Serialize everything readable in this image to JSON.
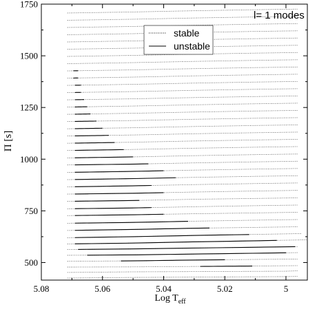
{
  "chart_data": {
    "type": "line",
    "title": "",
    "xlabel": "Log T",
    "xlabel_sub": "eff",
    "ylabel": "Π [s]",
    "xlim": [
      5.08,
      4.993
    ],
    "ylim": [
      415,
      1750
    ],
    "x_ticks": [
      "5.08",
      "5.06",
      "5.04",
      "5.02",
      "5"
    ],
    "y_ticks": [
      "500",
      "750",
      "1000",
      "1250",
      "1500",
      "1750"
    ],
    "annotation": "l= 1 modes",
    "legend": {
      "position": "top-center",
      "entries": [
        {
          "label": "stable",
          "style": "dotted"
        },
        {
          "label": "unstable",
          "style": "solid"
        }
      ]
    },
    "grid": false,
    "series": [
      {
        "period": 430,
        "x": [
          5.0715,
          5.05,
          5.0,
          4.996
        ],
        "y": [
          425,
          428,
          432,
          433
        ],
        "unstable": []
      },
      {
        "period": 460,
        "x": [
          5.0715,
          5.05,
          5.0,
          4.996
        ],
        "y": [
          452,
          455,
          458,
          460
        ],
        "unstable": []
      },
      {
        "period": 480,
        "x": [
          5.0715,
          5.05,
          5.03,
          5.01,
          4.996
        ],
        "y": [
          478,
          479,
          481,
          483,
          485
        ],
        "unstable": [
          [
            5.028,
            5.011
          ]
        ]
      },
      {
        "period": 510,
        "x": [
          5.0715,
          5.05,
          5.03,
          5.01,
          4.996
        ],
        "y": [
          506,
          508,
          512,
          515,
          517
        ],
        "unstable": [
          [
            5.054,
            5.02
          ]
        ]
      },
      {
        "period": 540,
        "x": [
          5.0715,
          5.05,
          5.03,
          5.01,
          4.996
        ],
        "y": [
          535,
          537,
          541,
          545,
          548
        ],
        "unstable": [
          [
            5.065,
            5.0
          ]
        ]
      },
      {
        "period": 570,
        "x": [
          5.0715,
          5.05,
          5.03,
          5.01,
          4.996
        ],
        "y": [
          563,
          566,
          570,
          574,
          577
        ],
        "unstable": [
          [
            5.068,
            4.997
          ]
        ]
      },
      {
        "period": 600,
        "x": [
          5.0715,
          5.05,
          5.03,
          5.01,
          4.993
        ],
        "y": [
          590,
          594,
          600,
          605,
          610
        ],
        "unstable": [
          [
            5.069,
            5.003
          ]
        ]
      },
      {
        "period": 630,
        "x": [
          5.0715,
          5.05,
          5.03,
          5.01,
          4.995
        ],
        "y": [
          620,
          625,
          631,
          636,
          640
        ],
        "unstable": [
          [
            5.069,
            5.012
          ]
        ]
      },
      {
        "period": 665,
        "x": [
          5.0715,
          5.05,
          5.03,
          5.01,
          4.996
        ],
        "y": [
          655,
          660,
          666,
          670,
          673
        ],
        "unstable": [
          [
            5.069,
            5.025
          ]
        ]
      },
      {
        "period": 700,
        "x": [
          5.0715,
          5.05,
          5.03,
          5.01,
          4.996
        ],
        "y": [
          690,
          694,
          700,
          705,
          708
        ],
        "unstable": [
          [
            5.069,
            5.032
          ]
        ]
      },
      {
        "period": 735,
        "x": [
          5.0715,
          5.05,
          5.03,
          5.01,
          4.996
        ],
        "y": [
          727,
          731,
          736,
          740,
          743
        ],
        "unstable": [
          [
            5.069,
            5.04
          ]
        ]
      },
      {
        "period": 770,
        "x": [
          5.0715,
          5.05,
          5.03,
          5.01,
          4.996
        ],
        "y": [
          760,
          764,
          770,
          775,
          778
        ],
        "unstable": [
          [
            5.069,
            5.044
          ]
        ]
      },
      {
        "period": 805,
        "x": [
          5.0715,
          5.05,
          5.03,
          5.01,
          4.996
        ],
        "y": [
          796,
          800,
          806,
          810,
          813
        ],
        "unstable": [
          [
            5.069,
            5.048
          ]
        ]
      },
      {
        "period": 840,
        "x": [
          5.0715,
          5.05,
          5.03,
          5.01,
          4.996
        ],
        "y": [
          831,
          835,
          841,
          846,
          849
        ],
        "unstable": [
          [
            5.069,
            5.04
          ]
        ]
      },
      {
        "period": 875,
        "x": [
          5.0715,
          5.05,
          5.03,
          5.01,
          4.996
        ],
        "y": [
          866,
          871,
          877,
          882,
          885
        ],
        "unstable": [
          [
            5.069,
            5.044
          ]
        ]
      },
      {
        "period": 910,
        "x": [
          5.0715,
          5.05,
          5.03,
          5.01,
          4.996
        ],
        "y": [
          901,
          906,
          912,
          917,
          920
        ],
        "unstable": [
          [
            5.069,
            5.036
          ]
        ]
      },
      {
        "period": 945,
        "x": [
          5.0715,
          5.05,
          5.03,
          5.01,
          4.996
        ],
        "y": [
          936,
          941,
          947,
          952,
          955
        ],
        "unstable": [
          [
            5.069,
            5.04
          ]
        ]
      },
      {
        "period": 980,
        "x": [
          5.0715,
          5.05,
          5.03,
          5.01,
          4.996
        ],
        "y": [
          972,
          976,
          982,
          987,
          990
        ],
        "unstable": [
          [
            5.069,
            5.045
          ]
        ]
      },
      {
        "period": 1015,
        "x": [
          5.0715,
          5.05,
          5.03,
          5.01,
          4.996
        ],
        "y": [
          1006,
          1011,
          1017,
          1022,
          1025
        ],
        "unstable": [
          [
            5.069,
            5.05
          ]
        ]
      },
      {
        "period": 1050,
        "x": [
          5.0715,
          5.05,
          5.03,
          5.01,
          4.996
        ],
        "y": [
          1042,
          1047,
          1053,
          1058,
          1061
        ],
        "unstable": [
          [
            5.069,
            5.053
          ]
        ]
      },
      {
        "period": 1085,
        "x": [
          5.0715,
          5.05,
          5.03,
          5.01,
          4.996
        ],
        "y": [
          1077,
          1082,
          1088,
          1093,
          1096
        ],
        "unstable": [
          [
            5.069,
            5.056
          ]
        ]
      },
      {
        "period": 1120,
        "x": [
          5.0715,
          5.05,
          5.03,
          5.01,
          4.996
        ],
        "y": [
          1112,
          1117,
          1123,
          1128,
          1131
        ],
        "unstable": [
          [
            5.069,
            5.058
          ]
        ]
      },
      {
        "period": 1155,
        "x": [
          5.0715,
          5.05,
          5.03,
          5.01,
          4.996
        ],
        "y": [
          1147,
          1152,
          1158,
          1163,
          1166
        ],
        "unstable": [
          [
            5.069,
            5.06
          ]
        ]
      },
      {
        "period": 1190,
        "x": [
          5.0715,
          5.05,
          5.03,
          5.01,
          4.996
        ],
        "y": [
          1182,
          1187,
          1193,
          1198,
          1201
        ],
        "unstable": [
          [
            5.069,
            5.062
          ]
        ]
      },
      {
        "period": 1225,
        "x": [
          5.0715,
          5.05,
          5.03,
          5.01,
          4.996
        ],
        "y": [
          1217,
          1222,
          1228,
          1233,
          1236
        ],
        "unstable": [
          [
            5.069,
            5.064
          ]
        ]
      },
      {
        "period": 1260,
        "x": [
          5.0715,
          5.05,
          5.03,
          5.01,
          4.996
        ],
        "y": [
          1252,
          1257,
          1263,
          1268,
          1271
        ],
        "unstable": [
          [
            5.069,
            5.065
          ]
        ]
      },
      {
        "period": 1295,
        "x": [
          5.0715,
          5.05,
          5.03,
          5.01,
          4.996
        ],
        "y": [
          1287,
          1292,
          1298,
          1303,
          1306
        ],
        "unstable": [
          [
            5.069,
            5.066
          ]
        ]
      },
      {
        "period": 1330,
        "x": [
          5.0715,
          5.05,
          5.03,
          5.01,
          4.996
        ],
        "y": [
          1322,
          1327,
          1333,
          1338,
          1341
        ],
        "unstable": [
          [
            5.069,
            5.067
          ]
        ]
      },
      {
        "period": 1365,
        "x": [
          5.0715,
          5.05,
          5.03,
          5.01,
          4.996
        ],
        "y": [
          1357,
          1362,
          1368,
          1373,
          1376
        ],
        "unstable": [
          [
            5.069,
            5.067
          ]
        ]
      },
      {
        "period": 1400,
        "x": [
          5.0715,
          5.05,
          5.03,
          5.01,
          4.996
        ],
        "y": [
          1392,
          1397,
          1403,
          1408,
          1411
        ],
        "unstable": [
          [
            5.0695,
            5.068
          ]
        ]
      },
      {
        "period": 1435,
        "x": [
          5.0715,
          5.05,
          5.03,
          5.01,
          4.996
        ],
        "y": [
          1427,
          1432,
          1438,
          1443,
          1446
        ],
        "unstable": [
          [
            5.0695,
            5.068
          ]
        ]
      },
      {
        "period": 1470,
        "x": [
          5.0715,
          5.05,
          5.03,
          5.01,
          4.996
        ],
        "y": [
          1462,
          1467,
          1473,
          1478,
          1481
        ],
        "unstable": []
      },
      {
        "period": 1505,
        "x": [
          5.0715,
          5.05,
          5.03,
          5.01,
          4.996
        ],
        "y": [
          1497,
          1502,
          1508,
          1513,
          1516
        ],
        "unstable": []
      },
      {
        "period": 1540,
        "x": [
          5.0715,
          5.05,
          5.03,
          5.01,
          4.996
        ],
        "y": [
          1532,
          1537,
          1543,
          1548,
          1551
        ],
        "unstable": []
      },
      {
        "period": 1575,
        "x": [
          5.0715,
          5.05,
          5.03,
          5.01,
          4.996
        ],
        "y": [
          1567,
          1572,
          1578,
          1583,
          1586
        ],
        "unstable": []
      },
      {
        "period": 1610,
        "x": [
          5.0715,
          5.05,
          5.03,
          5.01,
          4.996
        ],
        "y": [
          1602,
          1607,
          1613,
          1618,
          1621
        ],
        "unstable": []
      },
      {
        "period": 1645,
        "x": [
          5.0715,
          5.05,
          5.03,
          5.01,
          4.996
        ],
        "y": [
          1637,
          1642,
          1648,
          1653,
          1656
        ],
        "unstable": []
      },
      {
        "period": 1680,
        "x": [
          5.0715,
          5.05,
          5.03,
          5.01,
          4.996
        ],
        "y": [
          1672,
          1677,
          1683,
          1688,
          1691
        ],
        "unstable": []
      },
      {
        "period": 1715,
        "x": [
          5.0715,
          5.05,
          5.03,
          5.01,
          4.996
        ],
        "y": [
          1707,
          1712,
          1718,
          1723,
          1726
        ],
        "unstable": []
      }
    ]
  }
}
